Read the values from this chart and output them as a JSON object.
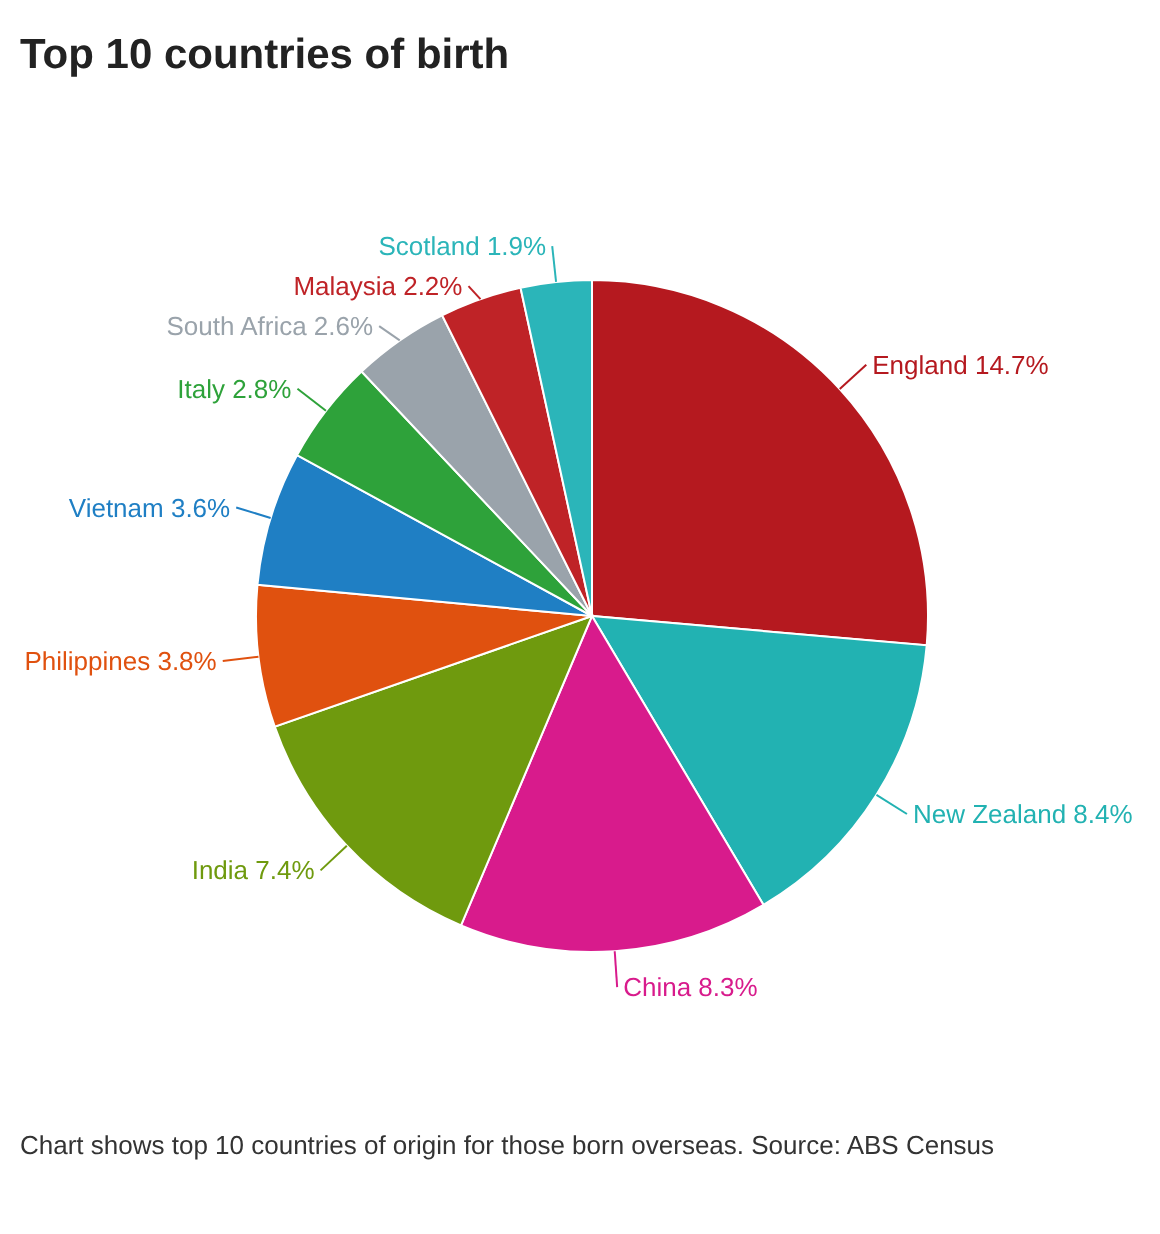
{
  "chart_data": {
    "type": "pie",
    "title": "Top 10 countries of birth",
    "categories": [
      "England",
      "New Zealand",
      "China",
      "India",
      "Philippines",
      "Vietnam",
      "Italy",
      "South Africa",
      "Malaysia",
      "Scotland"
    ],
    "values": [
      14.7,
      8.4,
      8.3,
      7.4,
      3.8,
      3.6,
      2.8,
      2.6,
      2.2,
      1.9
    ],
    "value_labels": [
      "14.7%",
      "8.4%",
      "8.3%",
      "7.4%",
      "3.8%",
      "3.6%",
      "2.8%",
      "2.6%",
      "2.2%",
      "1.9%"
    ],
    "colors": [
      "#b5191f",
      "#22b2b2",
      "#d81b8c",
      "#6f9a0e",
      "#e0510f",
      "#1f7fc4",
      "#2ea23a",
      "#9aa3ab",
      "#bf2327",
      "#2bb5b9"
    ],
    "annotations": [
      "Chart shows top 10 countries of origin for those born overseas. Source: ABS Census"
    ]
  }
}
